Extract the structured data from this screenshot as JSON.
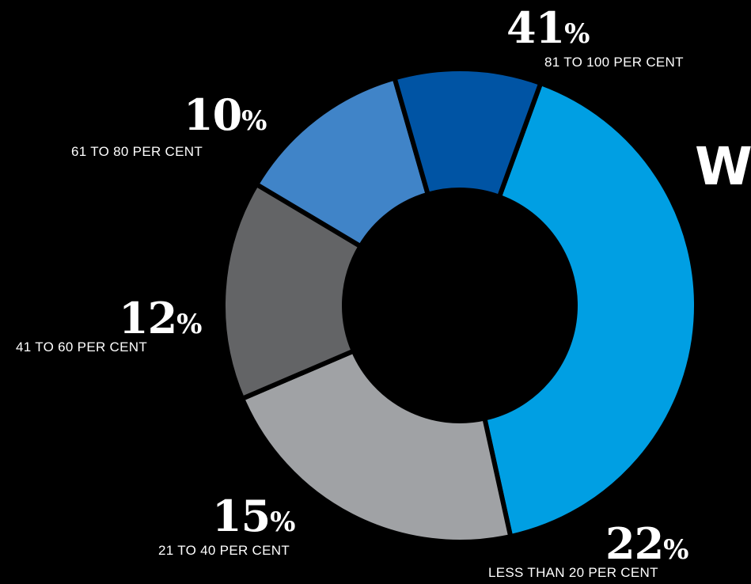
{
  "partial_heading": "W",
  "chart_data": {
    "type": "pie",
    "slices": [
      {
        "label": "81 TO 100 PER CENT",
        "value": 41,
        "display": "41",
        "color": "#009fe3"
      },
      {
        "label": "LESS THAN 20 PER CENT",
        "value": 22,
        "display": "22",
        "color": "#a0a2a5"
      },
      {
        "label": "21 TO 40 PER CENT",
        "value": 15,
        "display": "15",
        "color": "#636466"
      },
      {
        "label": "41 TO 60 PER CENT",
        "value": 12,
        "display": "12",
        "color": "#4084c8"
      },
      {
        "label": "61 TO 80 PER CENT",
        "value": 10,
        "display": "10",
        "color": "#0054a4"
      }
    ],
    "value_suffix": "%",
    "donut": true,
    "background": "#000000"
  }
}
